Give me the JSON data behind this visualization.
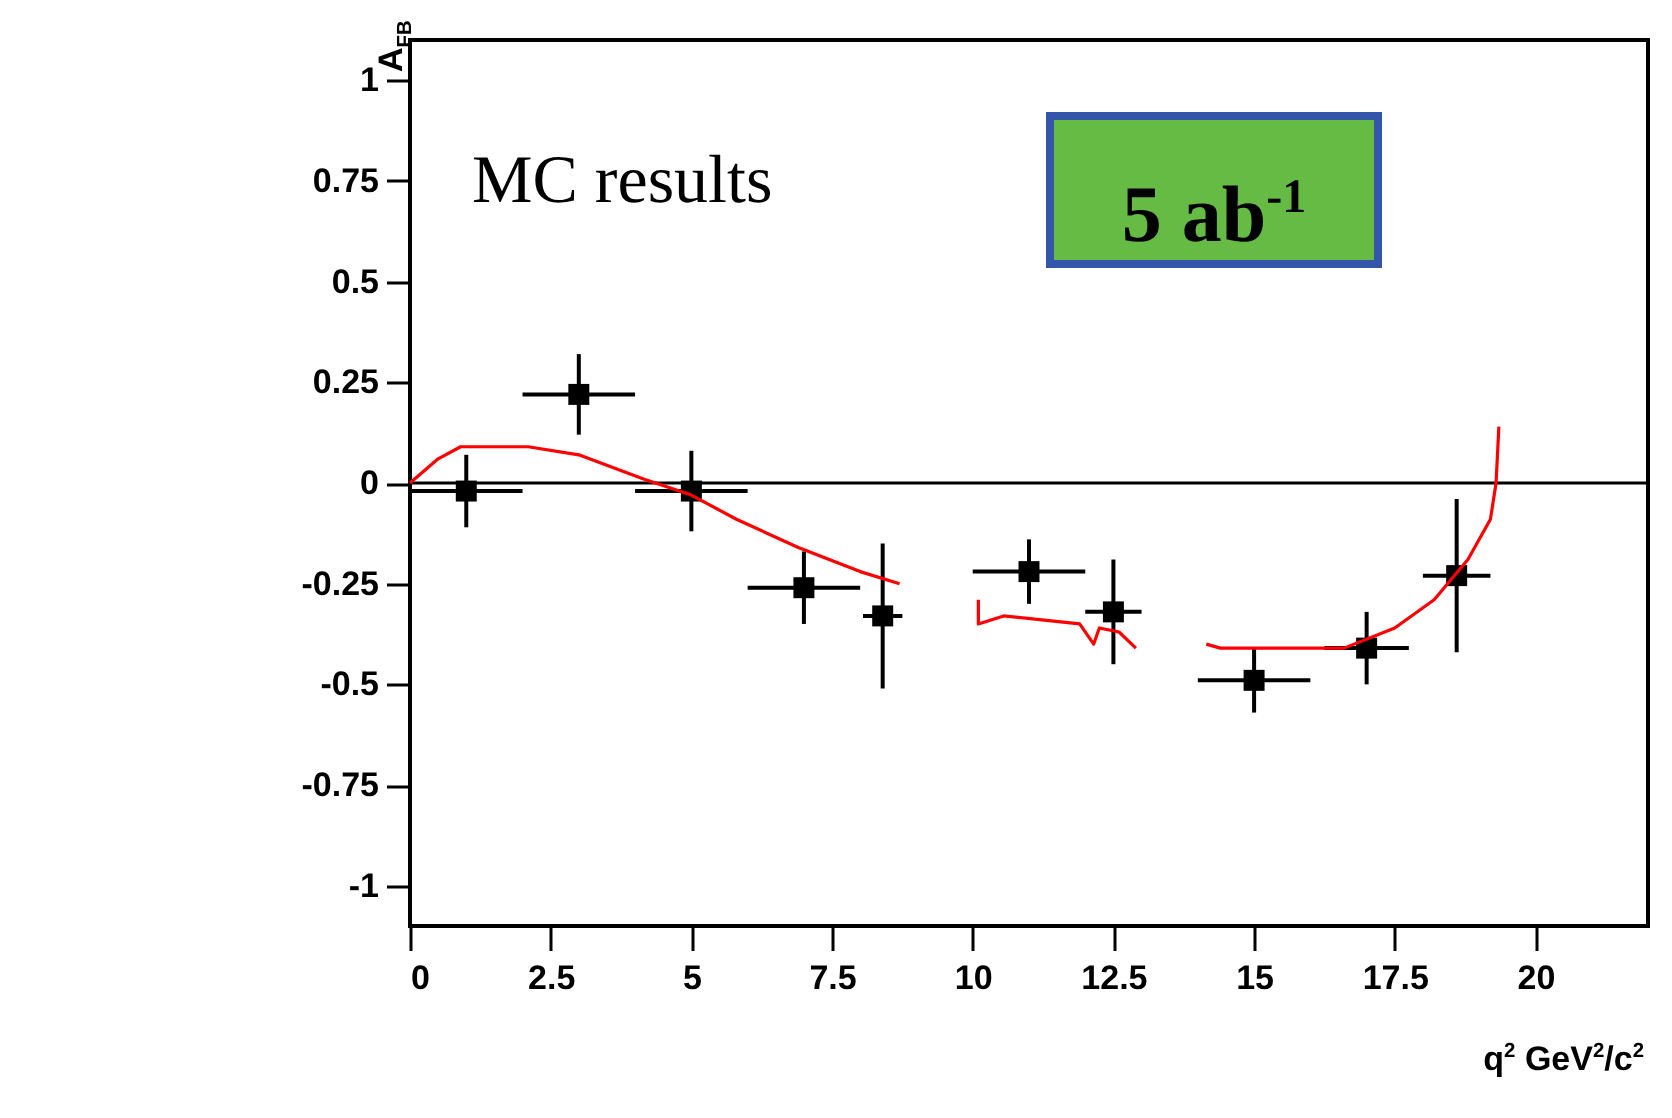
{
  "chart_data": {
    "type": "scatter",
    "ylabel": "A$_{FB}$",
    "xlabel": "q$^{2}$   GeV$^{2}$/c$^{2}$",
    "annotations": [
      "MC results",
      "5 ab$^{-1}$"
    ],
    "xlim": [
      0,
      22
    ],
    "xticks": [
      0,
      2.5,
      5,
      7.5,
      10,
      12.5,
      15,
      17.5,
      20
    ],
    "ylim": [
      -1.1,
      1.1
    ],
    "yticks": [
      -1,
      -0.75,
      -0.5,
      -0.25,
      0,
      0.25,
      0.5,
      0.75,
      1
    ],
    "grid": false,
    "ref_lines": [
      {
        "axis": "y",
        "value": 0,
        "color": "#000000"
      }
    ],
    "series": [
      {
        "type": "scatter",
        "color": "#000000",
        "marker": "square",
        "x": [
          1,
          3,
          5,
          7,
          8.4,
          11,
          12.5,
          15,
          17,
          18.6
        ],
        "values": [
          -0.02,
          0.22,
          -0.02,
          -0.26,
          -0.33,
          -0.22,
          -0.32,
          -0.49,
          -0.41,
          -0.23
        ],
        "errors": [
          0.09,
          0.1,
          0.1,
          0.09,
          0.18,
          0.08,
          0.13,
          0.08,
          0.09,
          0.19
        ],
        "xerrors": [
          1,
          1,
          1,
          1,
          0.35,
          1,
          0.5,
          1,
          0.75,
          0.6
        ]
      },
      {
        "type": "line",
        "color": "#ff0000",
        "line_style": "solid",
        "marker": "none",
        "x": [
          0,
          0.5,
          0.9,
          2.1,
          3,
          4.15,
          5,
          5.8,
          6.9,
          8,
          8.7,
          9.4,
          10.1,
          10.1,
          10.55,
          11.9,
          12.15,
          12.25,
          12.6,
          12.9,
          13.5,
          14.15,
          14.4,
          16.6,
          17.5,
          18.2,
          18.8,
          19.2,
          19.3,
          19.35
        ],
        "values": [
          0,
          0.06,
          0.09,
          0.09,
          0.07,
          0.01,
          -0.03,
          -0.09,
          -0.16,
          -0.22,
          -0.25,
          null,
          -0.29,
          -0.35,
          -0.33,
          -0.35,
          -0.4,
          -0.36,
          -0.37,
          -0.41,
          null,
          -0.4,
          -0.41,
          -0.41,
          -0.36,
          -0.29,
          -0.19,
          -0.09,
          0,
          0.14
        ]
      }
    ]
  }
}
